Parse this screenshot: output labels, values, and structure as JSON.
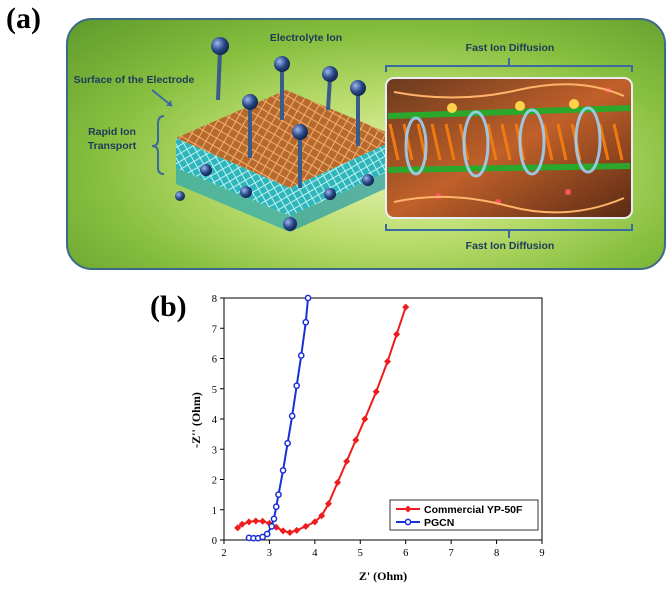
{
  "panel_a": {
    "label": "(a)",
    "texts": {
      "electrolyte_ion": "Electrolyte Ion",
      "surface": "Surface of the Electrode",
      "rapid_1": "Rapid Ion",
      "rapid_2": "Transport",
      "fast_top": "Fast Ion Diffusion",
      "fast_bottom": "Fast Ion Diffusion"
    },
    "colors": {
      "border": "#3c6a88",
      "ion": "#2a4a8a",
      "electrode_top": "#c07a3a",
      "electrode_bottom": "#4ec8c8"
    }
  },
  "panel_b": {
    "label": "(b)"
  },
  "chart_data": {
    "type": "line",
    "title": "",
    "xlabel": "Z' (Ohm)",
    "ylabel": "-Z'' (Ohm)",
    "xlim": [
      2,
      9
    ],
    "ylim": [
      0,
      8
    ],
    "xticks": [
      2,
      3,
      4,
      5,
      6,
      7,
      8,
      9
    ],
    "yticks": [
      0,
      1,
      2,
      3,
      4,
      5,
      6,
      7,
      8
    ],
    "grid": false,
    "legend_position": "bottom-right",
    "series": [
      {
        "name": "Commercial YP-50F",
        "color": "#ee1c1c",
        "marker": "diamond",
        "x": [
          2.3,
          2.4,
          2.55,
          2.7,
          2.85,
          3.0,
          3.15,
          3.3,
          3.45,
          3.6,
          3.8,
          4.0,
          4.15,
          4.3,
          4.5,
          4.7,
          4.9,
          5.1,
          5.35,
          5.6,
          5.8,
          6.0
        ],
        "y": [
          0.4,
          0.52,
          0.6,
          0.63,
          0.62,
          0.55,
          0.42,
          0.3,
          0.25,
          0.32,
          0.45,
          0.6,
          0.8,
          1.2,
          1.9,
          2.6,
          3.3,
          4.0,
          4.9,
          5.9,
          6.8,
          7.7
        ]
      },
      {
        "name": "PGCN",
        "color": "#1a2fd6",
        "marker": "circle",
        "x": [
          2.55,
          2.65,
          2.75,
          2.85,
          2.95,
          3.05,
          3.1,
          3.15,
          3.2,
          3.3,
          3.4,
          3.5,
          3.6,
          3.7,
          3.8,
          3.85
        ],
        "y": [
          0.07,
          0.06,
          0.06,
          0.1,
          0.2,
          0.45,
          0.7,
          1.1,
          1.5,
          2.3,
          3.2,
          4.1,
          5.1,
          6.1,
          7.2,
          8.0
        ]
      }
    ]
  }
}
